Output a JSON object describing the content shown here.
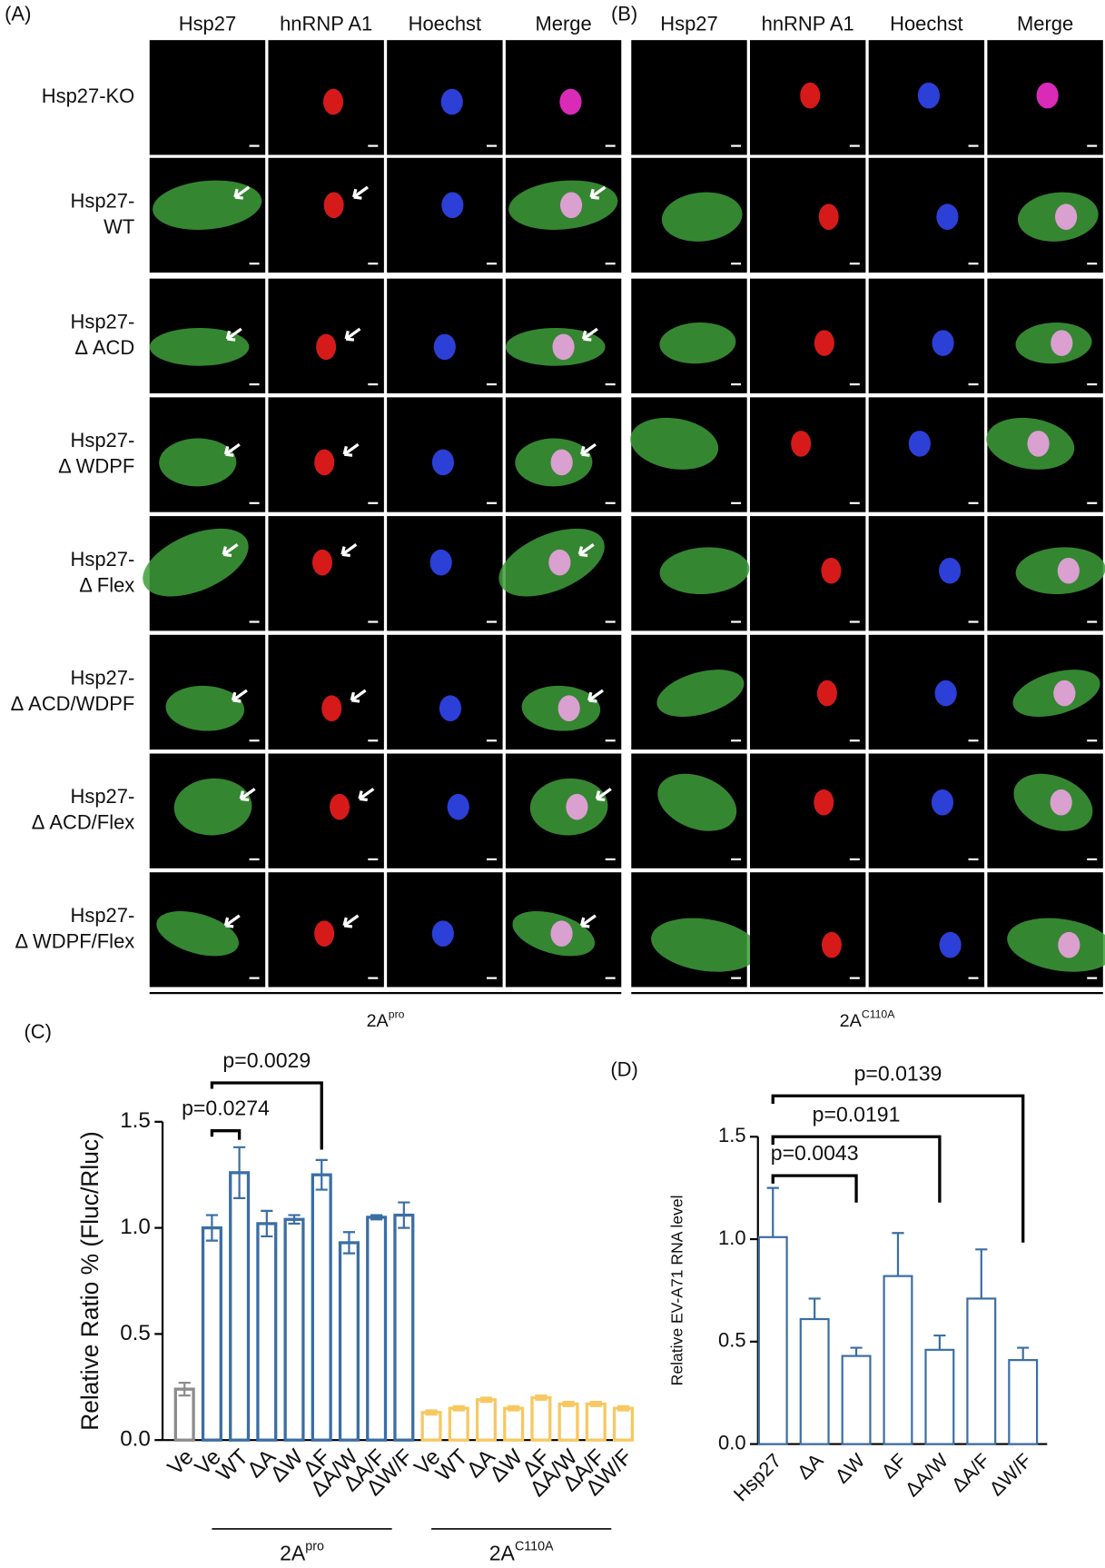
{
  "panels": [
    {
      "label": "(A)",
      "columns": [
        "Hsp27",
        "hnRNP A1",
        "Hoechst",
        "Merge"
      ],
      "treatment": {
        "base": "2A",
        "sup": "pro"
      }
    },
    {
      "label": "(B)",
      "columns": [
        "Hsp27",
        "hnRNP A1",
        "Hoechst",
        "Merge"
      ],
      "treatment": {
        "base": "2A",
        "sup": "C110A"
      }
    }
  ],
  "row_labels": [
    [
      "Hsp27-KO"
    ],
    [
      "Hsp27-",
      "WT"
    ],
    [
      "Hsp27-",
      "Δ ACD"
    ],
    [
      "Hsp27-",
      "Δ WDPF"
    ],
    [
      "Hsp27-",
      "Δ Flex"
    ],
    [
      "Hsp27-",
      "Δ ACD/WDPF"
    ],
    [
      "Hsp27-",
      "Δ ACD/Flex"
    ],
    [
      "Hsp27-",
      "Δ WDPF/Flex"
    ]
  ],
  "chart_data": [
    {
      "type": "bar",
      "panel_label": "(C)",
      "y_label": "Relative Ratio % (Fluc/Rluc)",
      "categories": [
        "Ve",
        "Ve",
        "WT",
        "ΔA",
        "ΔW",
        "ΔF",
        "ΔA/W",
        "ΔA/F",
        "ΔW/F",
        "Ve",
        "WT",
        "ΔA",
        "ΔW",
        "ΔF",
        "ΔA/W",
        "ΔA/F",
        "ΔW/F"
      ],
      "values": [
        0.24,
        1.0,
        1.26,
        1.02,
        1.04,
        1.25,
        0.93,
        1.05,
        1.06,
        0.13,
        0.15,
        0.19,
        0.15,
        0.2,
        0.17,
        0.17,
        0.15
      ],
      "errors": [
        0.03,
        0.06,
        0.12,
        0.06,
        0.02,
        0.07,
        0.05,
        0.01,
        0.06,
        0.01,
        0.01,
        0.01,
        0.01,
        0.01,
        0.01,
        0.01,
        0.01
      ],
      "error_direction": "both",
      "colors": [
        "#8c8c8c",
        "#3a6ea5",
        "#3a6ea5",
        "#3a6ea5",
        "#3a6ea5",
        "#3a6ea5",
        "#3a6ea5",
        "#3a6ea5",
        "#3a6ea5",
        "#f7c862",
        "#f7c862",
        "#f7c862",
        "#f7c862",
        "#f7c862",
        "#f7c862",
        "#f7c862",
        "#f7c862"
      ],
      "ylim": [
        0,
        1.5
      ],
      "yticks": [
        {
          "value": 0,
          "label": "0.0"
        },
        0.5,
        {
          "value": 1,
          "label": "1.0"
        },
        1.5
      ],
      "comparisons": [
        {
          "from": 1,
          "to": 2,
          "label": "p=0.0274"
        },
        {
          "from": 1,
          "to": 5,
          "label": "p=0.0029"
        }
      ],
      "groups": [
        {
          "from": 1,
          "to": 8,
          "base": "2A",
          "sup": "pro"
        },
        {
          "from": 9,
          "to": 16,
          "base": "2A",
          "sup": "C110A"
        }
      ]
    },
    {
      "type": "bar",
      "panel_label": "(D)",
      "y_label": "Relative EV-A71 RNA level",
      "categories": [
        "Hsp27",
        "ΔA",
        "ΔW",
        "ΔF",
        "ΔA/W",
        "ΔA/F",
        "ΔW/F"
      ],
      "values": [
        1.01,
        0.61,
        0.43,
        0.82,
        0.46,
        0.71,
        0.41
      ],
      "errors": [
        0.24,
        0.1,
        0.04,
        0.21,
        0.07,
        0.24,
        0.06
      ],
      "error_direction": "up",
      "colors": [
        "#3a6ea5",
        "#3a6ea5",
        "#3a6ea5",
        "#3a6ea5",
        "#3a6ea5",
        "#3a6ea5",
        "#3a6ea5"
      ],
      "ylim": [
        0,
        1.5
      ],
      "yticks": [
        {
          "value": 0,
          "label": "0.0"
        },
        0.5,
        {
          "value": 1,
          "label": "1.0"
        },
        1.5
      ],
      "comparisons": [
        {
          "from": 0,
          "to": 2,
          "label": "p=0.0043"
        },
        {
          "from": 0,
          "to": 4,
          "label": "p=0.0191"
        },
        {
          "from": 0,
          "to": 6,
          "label": "p=0.0139"
        }
      ]
    }
  ]
}
